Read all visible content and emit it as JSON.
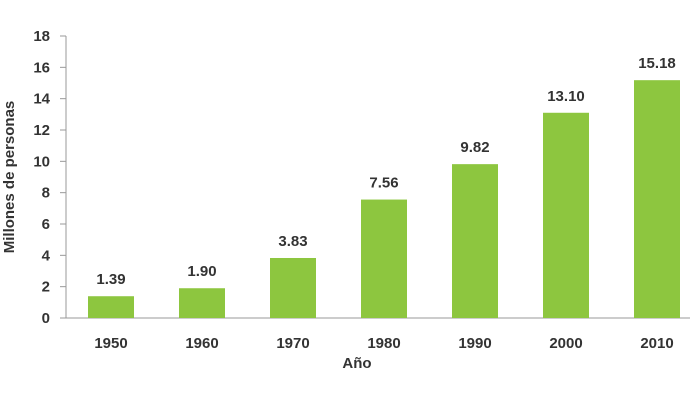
{
  "chart_data": {
    "type": "bar",
    "categories": [
      "1950",
      "1960",
      "1970",
      "1980",
      "1990",
      "2000",
      "2010"
    ],
    "values": [
      1.39,
      1.9,
      3.83,
      7.56,
      9.82,
      13.1,
      15.18
    ],
    "data_labels": [
      "1.39",
      "1.90",
      "3.83",
      "7.56",
      "9.82",
      "13.10",
      "15.18"
    ],
    "title": "",
    "xlabel": "Año",
    "ylabel": "Millones de personas",
    "ylim": [
      0,
      18
    ],
    "yticks": [
      "0",
      "2",
      "4",
      "6",
      "8",
      "10",
      "12",
      "14",
      "16",
      "18"
    ],
    "grid": false,
    "legend": "none",
    "bar_color": "#8dc63f",
    "axis_color": "#999999",
    "text_color": "#333333"
  }
}
